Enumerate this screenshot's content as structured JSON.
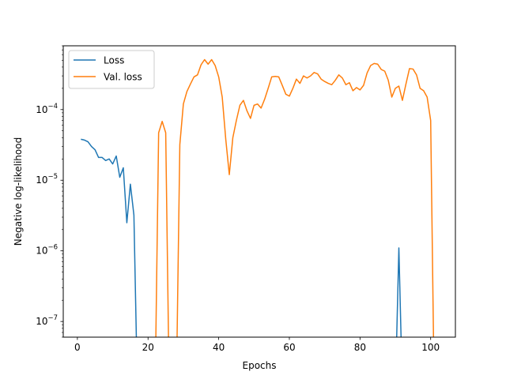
{
  "chart_data": {
    "type": "line",
    "title": "",
    "xlabel": "Epochs",
    "ylabel": "Negative log-likelihood",
    "xlim": [
      -4,
      107
    ],
    "ylim": [
      6e-08,
      0.0008
    ],
    "yscale": "log",
    "grid": false,
    "legend_position": "top-left",
    "x_ticks": [
      0,
      20,
      40,
      60,
      80,
      100
    ],
    "x_tick_labels": [
      "0",
      "20",
      "40",
      "60",
      "80",
      "100"
    ],
    "y_ticks": [
      1e-07,
      1e-06,
      1e-05,
      0.0001
    ],
    "y_tick_labels": [
      {
        "base": "10",
        "exp": "−7"
      },
      {
        "base": "10",
        "exp": "−6"
      },
      {
        "base": "10",
        "exp": "−5"
      },
      {
        "base": "10",
        "exp": "−4"
      }
    ],
    "series": [
      {
        "name": "Loss",
        "color": "#1f77b4",
        "segments": [
          [
            [
              1,
              3.8e-05
            ],
            [
              2,
              3.7e-05
            ],
            [
              3,
              3.5e-05
            ],
            [
              4,
              3e-05
            ],
            [
              5,
              2.7e-05
            ],
            [
              6,
              2.1e-05
            ],
            [
              7,
              2.1e-05
            ],
            [
              8,
              1.9e-05
            ],
            [
              9,
              2e-05
            ],
            [
              10,
              1.7e-05
            ],
            [
              11,
              2.2e-05
            ],
            [
              12,
              1.1e-05
            ],
            [
              13,
              1.5e-05
            ],
            [
              14,
              2.5e-06
            ],
            [
              15,
              8.8e-06
            ],
            [
              16,
              3.2e-06
            ],
            [
              17,
              1e-08
            ]
          ],
          [
            [
              90,
              1e-08
            ],
            [
              91,
              1.1e-06
            ],
            [
              92,
              1e-08
            ]
          ]
        ]
      },
      {
        "name": "Val. loss",
        "color": "#ff7f0e",
        "segments": [
          [
            [
              22,
              1e-08
            ],
            [
              23,
              4.7e-05
            ],
            [
              24,
              6.8e-05
            ],
            [
              25,
              4.7e-05
            ],
            [
              26,
              1e-08
            ]
          ],
          [
            [
              28,
              1e-08
            ],
            [
              29,
              3.2e-05
            ],
            [
              30,
              0.00012
            ],
            [
              31,
              0.00018
            ],
            [
              32,
              0.00023
            ],
            [
              33,
              0.00029
            ],
            [
              34,
              0.00031
            ],
            [
              35,
              0.00043
            ],
            [
              36,
              0.00051
            ],
            [
              37,
              0.00044
            ],
            [
              38,
              0.00051
            ],
            [
              39,
              0.00042
            ],
            [
              40,
              0.00029
            ],
            [
              41,
              0.00015
            ],
            [
              42,
              3.8e-05
            ],
            [
              43,
              1.2e-05
            ],
            [
              44,
              4e-05
            ],
            [
              45,
              7e-05
            ],
            [
              46,
              0.000115
            ],
            [
              47,
              0.000135
            ],
            [
              48,
              9.6e-05
            ],
            [
              49,
              7.5e-05
            ],
            [
              50,
              0.000115
            ],
            [
              51,
              0.00012
            ],
            [
              52,
              0.000105
            ],
            [
              53,
              0.00014
            ],
            [
              54,
              0.0002
            ],
            [
              55,
              0.00029
            ],
            [
              56,
              0.000295
            ],
            [
              57,
              0.00029
            ],
            [
              58,
              0.00022
            ],
            [
              59,
              0.000165
            ],
            [
              60,
              0.000155
            ],
            [
              61,
              0.0002
            ],
            [
              62,
              0.00027
            ],
            [
              63,
              0.000235
            ],
            [
              64,
              0.0003
            ],
            [
              65,
              0.00028
            ],
            [
              66,
              0.0003
            ],
            [
              67,
              0.000335
            ],
            [
              68,
              0.00032
            ],
            [
              69,
              0.00027
            ],
            [
              70,
              0.00025
            ],
            [
              71,
              0.000235
            ],
            [
              72,
              0.000225
            ],
            [
              73,
              0.00026
            ],
            [
              74,
              0.00031
            ],
            [
              75,
              0.00028
            ],
            [
              76,
              0.000225
            ],
            [
              77,
              0.00024
            ],
            [
              78,
              0.000185
            ],
            [
              79,
              0.000205
            ],
            [
              80,
              0.00019
            ],
            [
              81,
              0.00022
            ],
            [
              82,
              0.00033
            ],
            [
              83,
              0.00042
            ],
            [
              84,
              0.00045
            ],
            [
              85,
              0.00044
            ],
            [
              86,
              0.00037
            ],
            [
              87,
              0.00035
            ],
            [
              88,
              0.00026
            ],
            [
              89,
              0.00015
            ],
            [
              90,
              0.0002
            ],
            [
              91,
              0.000215
            ],
            [
              92,
              0.000135
            ],
            [
              93,
              0.00023
            ],
            [
              94,
              0.00038
            ],
            [
              95,
              0.000375
            ],
            [
              96,
              0.00031
            ],
            [
              97,
              0.0002
            ],
            [
              98,
              0.000185
            ],
            [
              99,
              0.00015
            ],
            [
              100,
              7e-05
            ],
            [
              101,
              1e-08
            ]
          ]
        ]
      }
    ]
  }
}
